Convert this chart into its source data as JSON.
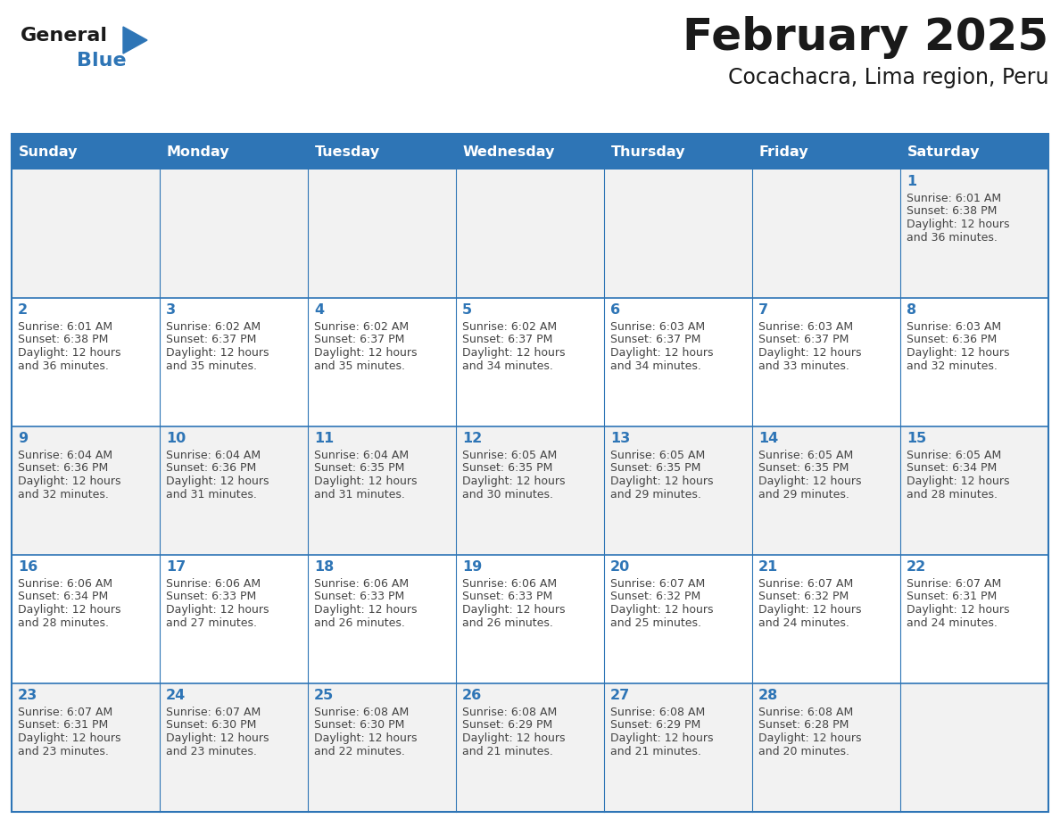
{
  "title": "February 2025",
  "subtitle": "Cocachacra, Lima region, Peru",
  "header_bg_color": "#2E75B6",
  "header_text_color": "#FFFFFF",
  "header_days": [
    "Sunday",
    "Monday",
    "Tuesday",
    "Wednesday",
    "Thursday",
    "Friday",
    "Saturday"
  ],
  "cell_border_color": "#2E75B6",
  "day_number_color": "#2E75B6",
  "detail_text_color": "#444444",
  "bg_color": "#FFFFFF",
  "row0_bg_color": "#F2F2F2",
  "logo_general_color": "#1a1a1a",
  "logo_blue_color": "#2E75B6",
  "calendar_data": [
    [
      null,
      null,
      null,
      null,
      null,
      null,
      1
    ],
    [
      2,
      3,
      4,
      5,
      6,
      7,
      8
    ],
    [
      9,
      10,
      11,
      12,
      13,
      14,
      15
    ],
    [
      16,
      17,
      18,
      19,
      20,
      21,
      22
    ],
    [
      23,
      24,
      25,
      26,
      27,
      28,
      null
    ]
  ],
  "sunrise_data": {
    "1": "6:01 AM",
    "2": "6:01 AM",
    "3": "6:02 AM",
    "4": "6:02 AM",
    "5": "6:02 AM",
    "6": "6:03 AM",
    "7": "6:03 AM",
    "8": "6:03 AM",
    "9": "6:04 AM",
    "10": "6:04 AM",
    "11": "6:04 AM",
    "12": "6:05 AM",
    "13": "6:05 AM",
    "14": "6:05 AM",
    "15": "6:05 AM",
    "16": "6:06 AM",
    "17": "6:06 AM",
    "18": "6:06 AM",
    "19": "6:06 AM",
    "20": "6:07 AM",
    "21": "6:07 AM",
    "22": "6:07 AM",
    "23": "6:07 AM",
    "24": "6:07 AM",
    "25": "6:08 AM",
    "26": "6:08 AM",
    "27": "6:08 AM",
    "28": "6:08 AM"
  },
  "sunset_data": {
    "1": "6:38 PM",
    "2": "6:38 PM",
    "3": "6:37 PM",
    "4": "6:37 PM",
    "5": "6:37 PM",
    "6": "6:37 PM",
    "7": "6:37 PM",
    "8": "6:36 PM",
    "9": "6:36 PM",
    "10": "6:36 PM",
    "11": "6:35 PM",
    "12": "6:35 PM",
    "13": "6:35 PM",
    "14": "6:35 PM",
    "15": "6:34 PM",
    "16": "6:34 PM",
    "17": "6:33 PM",
    "18": "6:33 PM",
    "19": "6:33 PM",
    "20": "6:32 PM",
    "21": "6:32 PM",
    "22": "6:31 PM",
    "23": "6:31 PM",
    "24": "6:30 PM",
    "25": "6:30 PM",
    "26": "6:29 PM",
    "27": "6:29 PM",
    "28": "6:28 PM"
  },
  "daylight_data": {
    "1": "12 hours and 36 minutes.",
    "2": "12 hours and 36 minutes.",
    "3": "12 hours and 35 minutes.",
    "4": "12 hours and 35 minutes.",
    "5": "12 hours and 34 minutes.",
    "6": "12 hours and 34 minutes.",
    "7": "12 hours and 33 minutes.",
    "8": "12 hours and 32 minutes.",
    "9": "12 hours and 32 minutes.",
    "10": "12 hours and 31 minutes.",
    "11": "12 hours and 31 minutes.",
    "12": "12 hours and 30 minutes.",
    "13": "12 hours and 29 minutes.",
    "14": "12 hours and 29 minutes.",
    "15": "12 hours and 28 minutes.",
    "16": "12 hours and 28 minutes.",
    "17": "12 hours and 27 minutes.",
    "18": "12 hours and 26 minutes.",
    "19": "12 hours and 26 minutes.",
    "20": "12 hours and 25 minutes.",
    "21": "12 hours and 24 minutes.",
    "22": "12 hours and 24 minutes.",
    "23": "12 hours and 23 minutes.",
    "24": "12 hours and 23 minutes.",
    "25": "12 hours and 22 minutes.",
    "26": "12 hours and 21 minutes.",
    "27": "12 hours and 21 minutes.",
    "28": "12 hours and 20 minutes."
  }
}
